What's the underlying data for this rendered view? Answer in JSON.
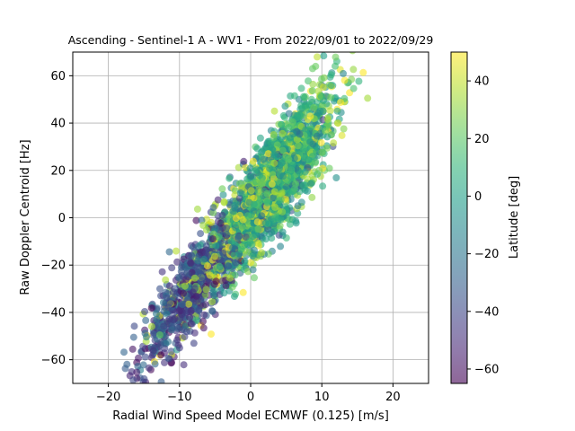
{
  "chart_data": {
    "type": "scatter",
    "title": "Ascending - Sentinel-1 A - WV1 - From 2022/09/01 to 2022/09/29",
    "xlabel": "Radial Wind Speed Model ECMWF (0.125) [m/s]",
    "ylabel": "Raw Doppler Centroid [Hz]",
    "xlim": [
      -25,
      25
    ],
    "ylim": [
      -70,
      70
    ],
    "xticks": [
      -20,
      -10,
      0,
      10,
      20
    ],
    "yticks": [
      -60,
      -40,
      -20,
      0,
      20,
      40,
      60
    ],
    "grid": true,
    "point_alpha": 0.6,
    "colormap": "viridis",
    "colorbar": {
      "label": "Latitude [deg]",
      "range": [
        -65,
        50
      ],
      "ticks": [
        -60,
        -40,
        -20,
        0,
        20,
        40
      ]
    },
    "distribution": {
      "n_points": 2600,
      "trend": {
        "slope_hz_per_ms": 3.8,
        "intercept_hz": 2
      },
      "x_range": [
        -21,
        17
      ],
      "latitude_bands": [
        {
          "latitude": -40,
          "x_center": -8,
          "x_spread": 5.5,
          "y_noise": 9
        },
        {
          "latitude": -10,
          "x_center": 2,
          "x_spread": 6,
          "y_noise": 10
        },
        {
          "latitude": 10,
          "x_center": 5,
          "x_spread": 5,
          "y_noise": 11
        },
        {
          "latitude": 35,
          "x_center": 1,
          "x_spread": 8,
          "y_noise": 10
        }
      ]
    }
  }
}
